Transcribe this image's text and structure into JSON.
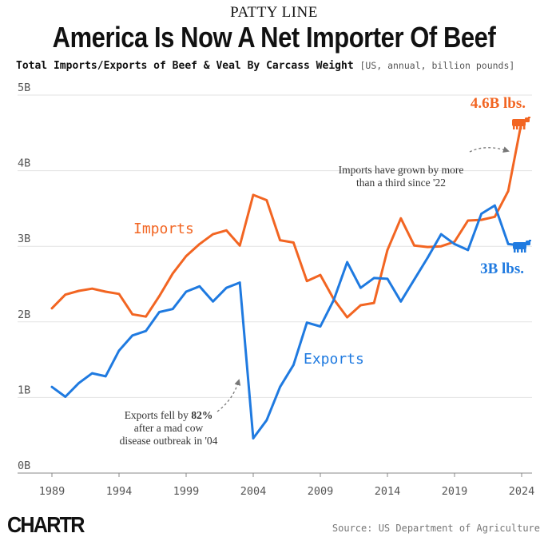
{
  "header": {
    "kicker": "PATTY LINE",
    "title": "America Is Now A Net Importer Of Beef",
    "subtitle": "Total Imports/Exports of Beef & Veal By Carcass Weight",
    "subtitle_meta": "[US, annual, billion pounds]"
  },
  "footer": {
    "logo": "CHARTR",
    "source": "Source: US Department of Agriculture"
  },
  "colors": {
    "imports": "#f26522",
    "exports": "#1f7ae0",
    "grid": "#e3e3e3"
  },
  "chart_data": {
    "type": "line",
    "title": "America Is Now A Net Importer Of Beef",
    "subtitle": "Total Imports/Exports of Beef & Veal By Carcass Weight [US, annual, billion pounds]",
    "xlabel": "",
    "ylabel": "",
    "xlim": [
      1989,
      2024
    ],
    "ylim": [
      0,
      5
    ],
    "grid": true,
    "x_ticks": [
      1989,
      1994,
      1999,
      2004,
      2009,
      2014,
      2019,
      2024
    ],
    "x_tick_labels": [
      "1989",
      "1994",
      "1999",
      "2004",
      "2009",
      "2014",
      "2019",
      "2024"
    ],
    "y_ticks": [
      0,
      1,
      2,
      3,
      4,
      5
    ],
    "y_tick_labels": [
      "0B",
      "1B",
      "2B",
      "3B",
      "4B",
      "5B"
    ],
    "x": [
      1989,
      1990,
      1991,
      1992,
      1993,
      1994,
      1995,
      1996,
      1997,
      1998,
      1999,
      2000,
      2001,
      2002,
      2003,
      2004,
      2005,
      2006,
      2007,
      2008,
      2009,
      2010,
      2011,
      2012,
      2013,
      2014,
      2015,
      2016,
      2017,
      2018,
      2019,
      2020,
      2021,
      2022,
      2023,
      2024
    ],
    "series": [
      {
        "name": "Imports",
        "color": "#f26522",
        "values": [
          2.18,
          2.36,
          2.41,
          2.44,
          2.4,
          2.37,
          2.1,
          2.07,
          2.34,
          2.64,
          2.87,
          3.03,
          3.16,
          3.21,
          3.01,
          3.68,
          3.61,
          3.08,
          3.05,
          2.54,
          2.62,
          2.3,
          2.06,
          2.22,
          2.25,
          2.95,
          3.37,
          3.01,
          2.99,
          3.0,
          3.06,
          3.34,
          3.35,
          3.39,
          3.73,
          4.65
        ]
      },
      {
        "name": "Exports",
        "color": "#1f7ae0",
        "values": [
          1.14,
          1.01,
          1.19,
          1.32,
          1.28,
          1.62,
          1.82,
          1.88,
          2.13,
          2.17,
          2.4,
          2.47,
          2.27,
          2.45,
          2.52,
          0.46,
          0.7,
          1.14,
          1.43,
          1.99,
          1.94,
          2.29,
          2.79,
          2.45,
          2.58,
          2.57,
          2.27,
          2.56,
          2.85,
          3.16,
          3.03,
          2.95,
          3.43,
          3.54,
          3.03,
          3.01
        ]
      }
    ],
    "series_labels": {
      "imports": "Imports",
      "exports": "Exports"
    },
    "end_labels": {
      "imports": "4.6B lbs.",
      "exports": "3B lbs."
    },
    "annotations": {
      "imports_line1": "Imports have grown by more",
      "imports_line2": "than a third since '22",
      "exports_line1_pre": "Exports fell by ",
      "exports_line1_bold": "82%",
      "exports_line2": "after a mad cow",
      "exports_line3": "disease outbreak in '04"
    }
  }
}
